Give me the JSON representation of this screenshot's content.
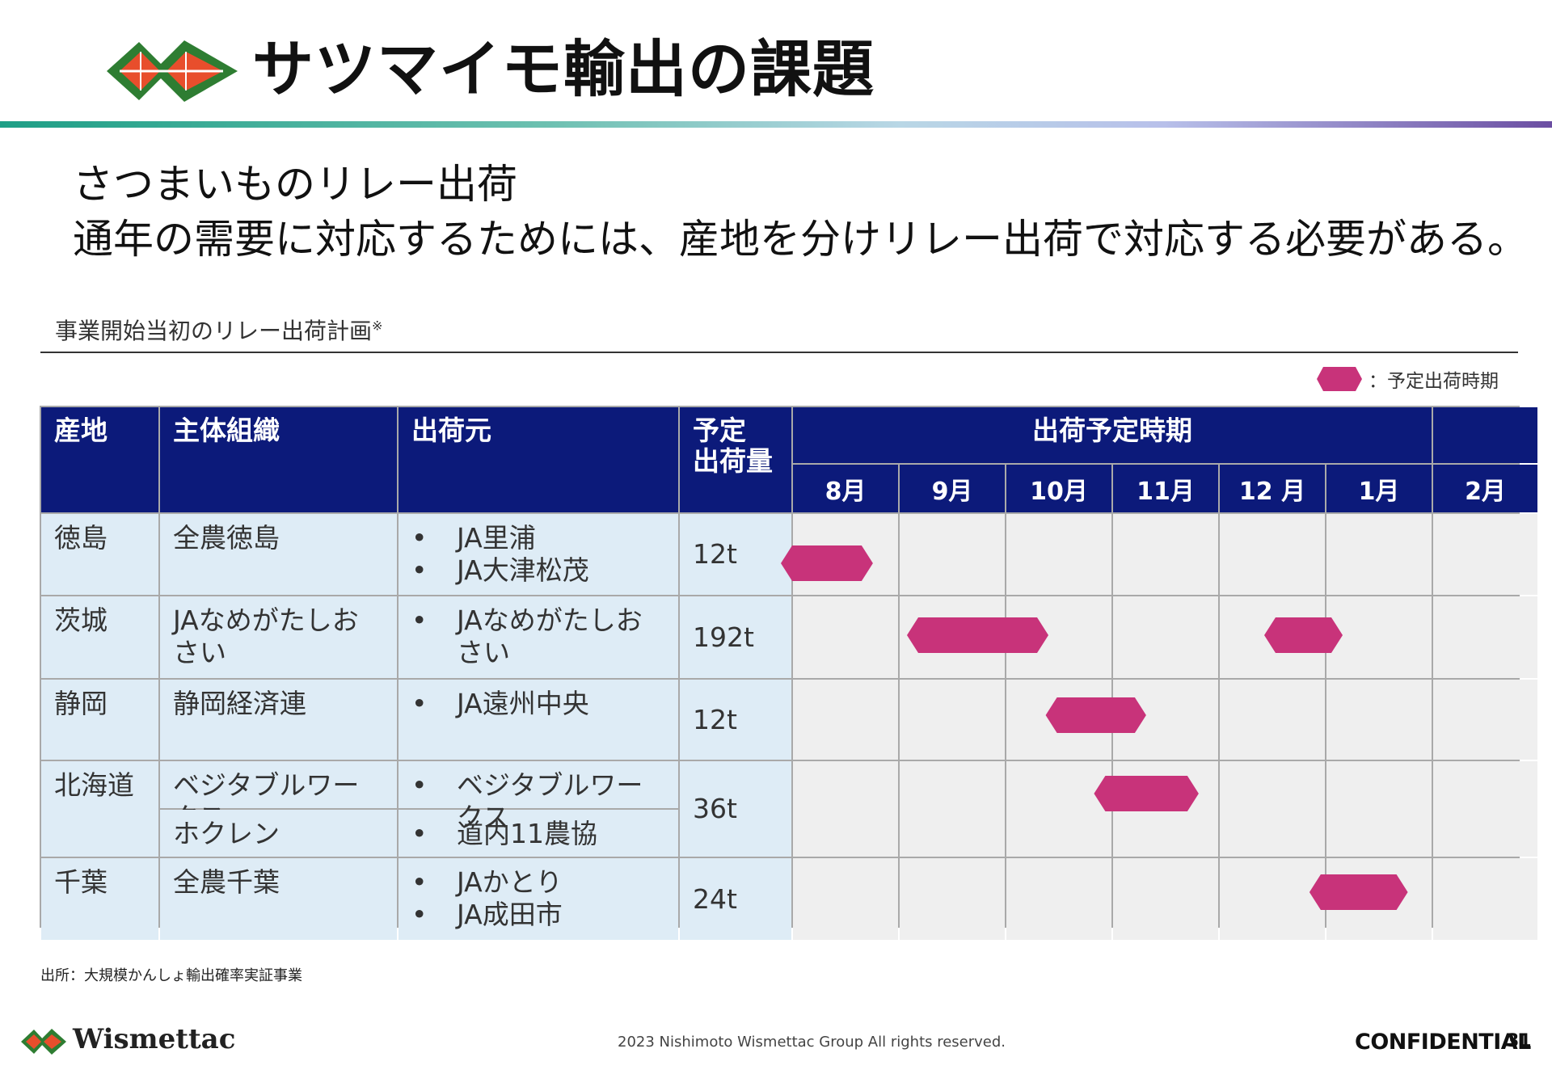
{
  "header": {
    "title": "サツマイモ輸出の課題",
    "logo_icon": "leaf-logo-icon"
  },
  "lead": {
    "line1": "さつまいものリレー出荷",
    "line2": "通年の需要に対応するためには、産地を分けリレー出荷で対応する必要がある。"
  },
  "table_caption": {
    "text": "事業開始当初のリレー出荷計画",
    "mark": "※"
  },
  "legend": {
    "label": "：予定出荷時期",
    "color": "#c8337a"
  },
  "table": {
    "headers": {
      "region": "産地",
      "organization": "主体組織",
      "shipper": "出荷元",
      "volume": "予定\n出荷量",
      "period": "出荷予定時期"
    },
    "months": [
      "8月",
      "9月",
      "10月",
      "11月",
      "12 月",
      "1月",
      "2月"
    ],
    "rows": [
      {
        "region": "徳島",
        "organization": "全農徳島",
        "shippers": [
          "JA里浦",
          "JA大津松茂"
        ],
        "volume": "12t",
        "periods": [
          [
            0.0,
            0.83
          ]
        ]
      },
      {
        "region": "茨城",
        "organization": "JAなめがたしおさい",
        "shippers": [
          "JAなめがたしおさい"
        ],
        "volume": "192t",
        "periods": [
          [
            1.2,
            2.5
          ],
          [
            4.6,
            5.3
          ]
        ]
      },
      {
        "region": "静岡",
        "organization": "静岡経済連",
        "shippers": [
          "JA遠州中央"
        ],
        "volume": "12t",
        "periods": [
          [
            2.52,
            3.43
          ]
        ]
      },
      {
        "region": "北海道",
        "organization": "ベジタブルワークス",
        "shippers": [
          "ベジタブルワークス"
        ],
        "volume": "36t",
        "periods": [
          [
            2.98,
            3.93
          ]
        ]
      },
      {
        "organization": "ホクレン",
        "shippers": [
          "道内11農協"
        ]
      },
      {
        "region": "千葉",
        "organization": "全農千葉",
        "shippers": [
          "JAかとり",
          "JA成田市"
        ],
        "volume": "24t",
        "periods": [
          [
            5.03,
            5.92
          ]
        ]
      }
    ]
  },
  "footer": {
    "source": "出所：大規模かんしょ輸出確率実証事業",
    "brand": "Wismettac",
    "copyright": "2023 Nishimoto Wismettac Group All rights reserved.",
    "confidential": "CONFIDENTIAL",
    "page_number": "31"
  }
}
